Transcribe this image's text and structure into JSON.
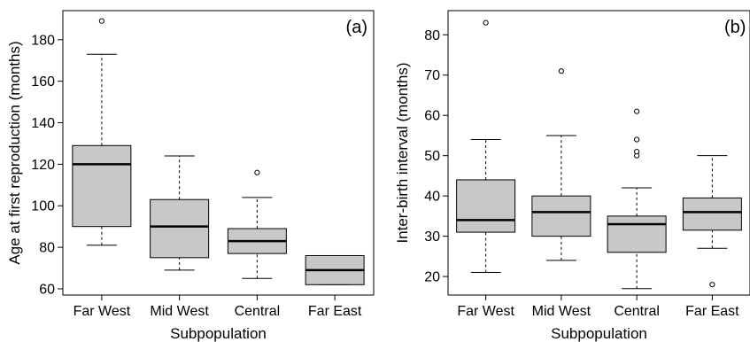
{
  "chart_data": [
    {
      "type": "box",
      "panel_label": "(a)",
      "xlabel": "Subpopulation",
      "ylabel": "Age at first reproduction (months)",
      "categories": [
        "Far West",
        "Mid West",
        "Central",
        "Far East"
      ],
      "ylim": [
        57,
        194
      ],
      "yticks": [
        60,
        80,
        100,
        120,
        140,
        160,
        180
      ],
      "boxes": [
        {
          "whisker_low": 81,
          "q1": 90,
          "median": 120,
          "q3": 129,
          "whisker_high": 173,
          "outliers": [
            189
          ]
        },
        {
          "whisker_low": 69,
          "q1": 75,
          "median": 90,
          "q3": 103,
          "whisker_high": 124,
          "outliers": []
        },
        {
          "whisker_low": 65,
          "q1": 77,
          "median": 83,
          "q3": 89,
          "whisker_high": 104,
          "outliers": [
            116
          ]
        },
        {
          "whisker_low": 62,
          "q1": 62,
          "median": 69,
          "q3": 76,
          "whisker_high": 76,
          "outliers": []
        }
      ],
      "box_fill": "#c8c8c8",
      "grid": false
    },
    {
      "type": "box",
      "panel_label": "(b)",
      "xlabel": "Subpopulation",
      "ylabel": "Inter-birth interval (months)",
      "categories": [
        "Far West",
        "Mid West",
        "Central",
        "Far East"
      ],
      "ylim": [
        15.4,
        86
      ],
      "yticks": [
        20,
        30,
        40,
        50,
        60,
        70,
        80
      ],
      "boxes": [
        {
          "whisker_low": 21,
          "q1": 31,
          "median": 34,
          "q3": 44,
          "whisker_high": 54,
          "outliers": [
            83
          ]
        },
        {
          "whisker_low": 24,
          "q1": 30,
          "median": 36,
          "q3": 40,
          "whisker_high": 55,
          "outliers": [
            71
          ]
        },
        {
          "whisker_low": 17,
          "q1": 26,
          "median": 33,
          "q3": 35,
          "whisker_high": 42,
          "outliers": [
            50,
            51,
            54,
            61
          ]
        },
        {
          "whisker_low": 27,
          "q1": 31.5,
          "median": 36,
          "q3": 39.5,
          "whisker_high": 50,
          "outliers": [
            18
          ]
        }
      ],
      "box_fill": "#c8c8c8",
      "grid": false
    }
  ]
}
